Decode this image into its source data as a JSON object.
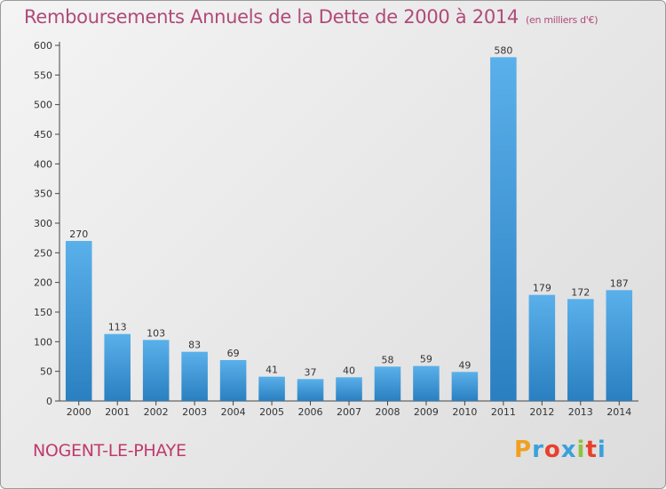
{
  "header": {
    "title": "Remboursements Annuels de la Dette de 2000 à 2014",
    "subtitle": "(en milliers d'€)"
  },
  "footer": {
    "commune": "NOGENT-LE-PHAYE",
    "logo": "Proxiti"
  },
  "colors": {
    "bar_light": "#5ab0ea",
    "bar_dark": "#2a7fc0",
    "title": "#b04a78",
    "logo_letters": [
      "#f0a020",
      "#3aa0dc",
      "#e8402c",
      "#3aa0dc",
      "#8cc43c",
      "#e8402c",
      "#3aa0dc"
    ]
  },
  "chart_data": {
    "type": "bar",
    "title": "Remboursements Annuels de la Dette de 2000 à 2014",
    "subtitle": "(en milliers d'€)",
    "xlabel": "",
    "ylabel": "",
    "categories": [
      "2000",
      "2001",
      "2002",
      "2003",
      "2004",
      "2005",
      "2006",
      "2007",
      "2008",
      "2009",
      "2010",
      "2011",
      "2012",
      "2013",
      "2014"
    ],
    "values": [
      270,
      113,
      103,
      83,
      69,
      41,
      37,
      40,
      58,
      59,
      49,
      580,
      179,
      172,
      187
    ],
    "value_labels": [
      "270",
      "113",
      "103",
      "83",
      "69",
      "41",
      "37",
      "40",
      "58",
      "59",
      "49",
      "580",
      "179",
      "172",
      "187"
    ],
    "ylim": [
      0,
      600
    ],
    "yticks": [
      0,
      50,
      100,
      150,
      200,
      250,
      300,
      350,
      400,
      450,
      500,
      550,
      600
    ],
    "grid": false,
    "legend": "none"
  }
}
